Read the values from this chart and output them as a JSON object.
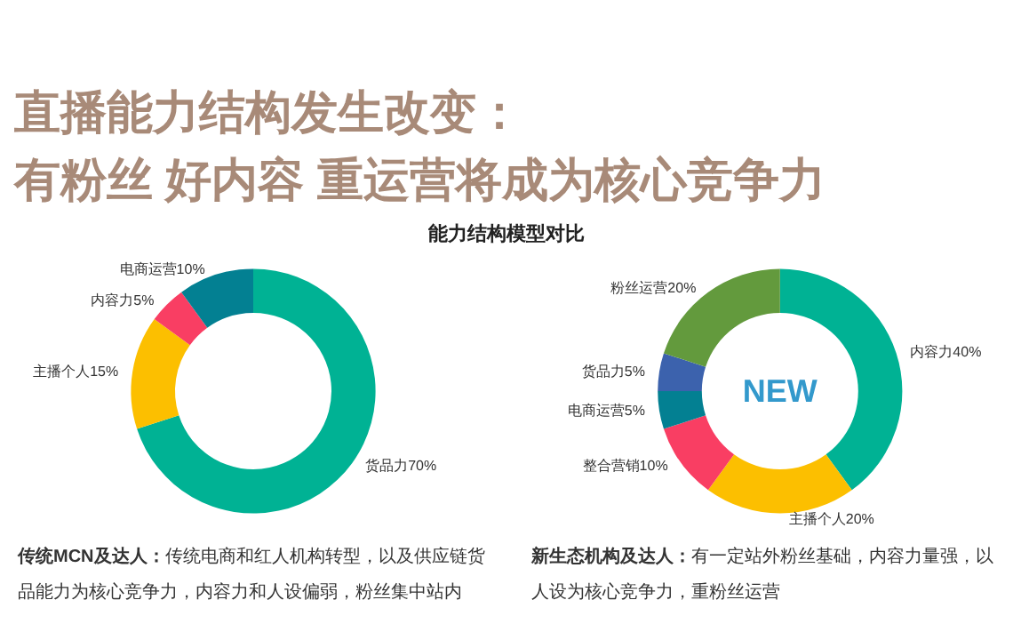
{
  "chart_data": [
    {
      "type": "donut",
      "title": "直播能力结构发生改变：",
      "subtitle": "有粉丝 好内容 重运营将成为核心竞争力",
      "categories": [
        "货品力",
        "主播个人",
        "内容力",
        "电商运营"
      ],
      "values": [
        70,
        15,
        5,
        10
      ],
      "value_labels": [
        "70%",
        "15%",
        "5%",
        "10%"
      ],
      "colors": [
        "#00b294",
        "#fcbf00",
        "#f93e63",
        "#038092"
      ],
      "annotations": [
        "能力结构模型对比",
        "传统MCN及达人：",
        "传统电商和红人机构转型，以及供应链货品能力为核心竞争力，内容力和人设偏弱，粉丝集中站内"
      ]
    },
    {
      "type": "donut",
      "categories": [
        "内容力",
        "主播个人",
        "整合营销",
        "电商运营",
        "货品力",
        "粉丝运营"
      ],
      "values": [
        40,
        20,
        10,
        5,
        5,
        20
      ],
      "value_labels": [
        "40%",
        "20%",
        "10%",
        "5%",
        "5%",
        "20%"
      ],
      "colors": [
        "#00b294",
        "#fcbf00",
        "#f93e63",
        "#038092",
        "#3c62ad",
        "#639a3d"
      ],
      "annotations": [
        "NEW",
        "新生态机构及达人：",
        "有一定站外粉丝基础，内容力量强，以人设为核心竞争力，重粉丝运营"
      ]
    }
  ]
}
